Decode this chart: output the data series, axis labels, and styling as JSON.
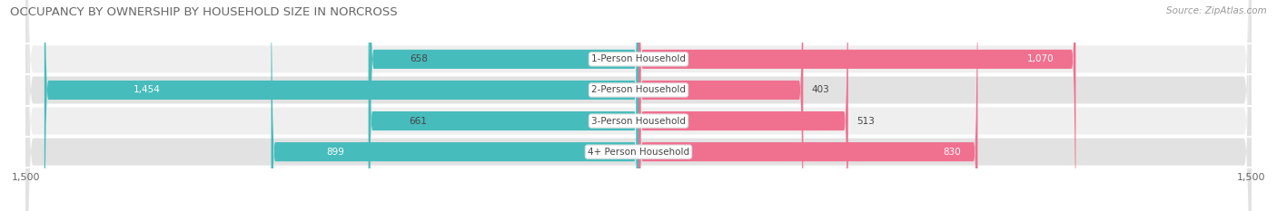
{
  "title": "OCCUPANCY BY OWNERSHIP BY HOUSEHOLD SIZE IN NORCROSS",
  "source": "Source: ZipAtlas.com",
  "categories": [
    "1-Person Household",
    "2-Person Household",
    "3-Person Household",
    "4+ Person Household"
  ],
  "owner_values": [
    658,
    1454,
    661,
    899
  ],
  "renter_values": [
    1070,
    403,
    513,
    830
  ],
  "x_max": 1500,
  "owner_color": "#47BCBC",
  "owner_color_light": "#7DCFCF",
  "renter_color": "#F07090",
  "renter_color_light": "#F0A0C0",
  "row_bg_odd": "#EFEFEF",
  "row_bg_even": "#E2E2E2",
  "title_fontsize": 9.5,
  "label_fontsize": 7.5,
  "tick_fontsize": 8,
  "source_fontsize": 7.5,
  "figsize": [
    14.06,
    2.33
  ],
  "dpi": 100
}
